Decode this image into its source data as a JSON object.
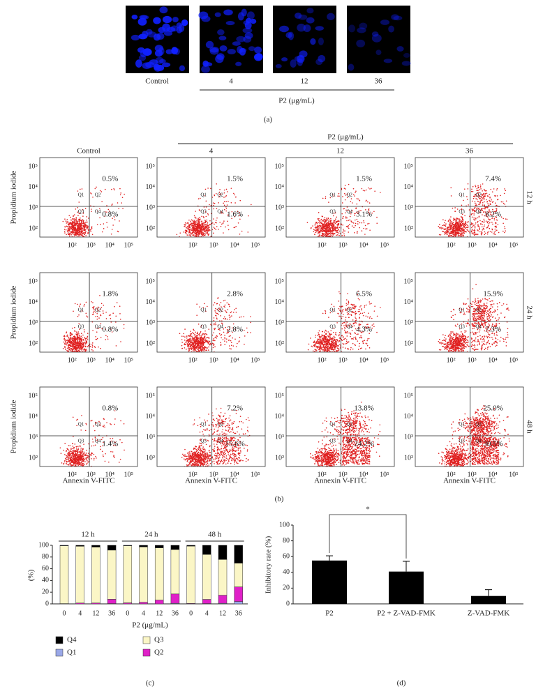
{
  "panel_a": {
    "columns": [
      "Control",
      "4",
      "12",
      "36"
    ],
    "axis_label": "P2 (μg/mL)",
    "panel_label": "(a)"
  },
  "panel_b": {
    "header": "P2 (μg/mL)",
    "columns": [
      "Control",
      "4",
      "12",
      "36"
    ],
    "ticks": [
      "10²",
      "10³",
      "10⁴",
      "10⁵"
    ],
    "quadrants": [
      "Q1",
      "Q2",
      "Q3",
      "Q4"
    ],
    "x_label": "Annexin V-FITC",
    "y_label": "Propidium iodide",
    "panel_label": "(b)",
    "rows": [
      {
        "time": "12 h",
        "plots": [
          {
            "upper": "0.5%",
            "lower": "0.8%"
          },
          {
            "upper": "1.5%",
            "lower": "1.6%"
          },
          {
            "upper": "1.5%",
            "lower": "3.1%"
          },
          {
            "upper": "7.4%",
            "lower": "8.2%"
          }
        ]
      },
      {
        "time": "24 h",
        "plots": [
          {
            "upper": "1.8%",
            "lower": "0.8%"
          },
          {
            "upper": "2.8%",
            "lower": "2.8%"
          },
          {
            "upper": "6.5%",
            "lower": "4.3%"
          },
          {
            "upper": "15.9%",
            "lower": "7.3%"
          }
        ]
      },
      {
        "time": "48 h",
        "plots": [
          {
            "upper": "0.8%",
            "lower": "1.4%"
          },
          {
            "upper": "7.2%",
            "lower": "15.6%"
          },
          {
            "upper": "13.8%",
            "lower": "24.2%"
          },
          {
            "upper": "25.0%",
            "lower": "30.5%"
          }
        ]
      }
    ]
  },
  "chart_data": [
    {
      "type": "stacked_bar",
      "categories": [
        "0",
        "4",
        "12",
        "36",
        "0",
        "4",
        "12",
        "36",
        "0",
        "4",
        "12",
        "36"
      ],
      "groups": [
        "12 h",
        "24 h",
        "48 h"
      ],
      "x_label": "P2 (μg/mL)",
      "y_label": "(%)",
      "panel_label": "(c)",
      "ylim": [
        0,
        100
      ],
      "yticks": [
        0,
        20,
        40,
        60,
        80,
        100
      ],
      "series": [
        {
          "name": "Q1",
          "color": "#9aa8e8",
          "values": [
            0,
            0,
            0,
            0.5,
            0,
            0,
            0,
            1,
            0,
            0.5,
            1,
            4
          ]
        },
        {
          "name": "Q2",
          "color": "#e020c8",
          "values": [
            0.5,
            1.5,
            1.5,
            7.4,
            1.8,
            2.8,
            6.5,
            15.9,
            0.8,
            7.2,
            13.8,
            25
          ]
        },
        {
          "name": "Q3",
          "color": "#fbf6c6",
          "values": [
            98.7,
            96.9,
            95.4,
            83.9,
            97.4,
            94.4,
            89.2,
            75.8,
            97.8,
            76.7,
            61,
            40.5
          ]
        },
        {
          "name": "Q4",
          "color": "#000000",
          "values": [
            0.8,
            1.6,
            3.1,
            8.2,
            0.8,
            2.8,
            4.3,
            7.3,
            1.4,
            15.6,
            24.2,
            30.5
          ]
        }
      ]
    },
    {
      "type": "bar",
      "categories": [
        "P2",
        "P2 + Z-VAD-FMK",
        "Z-VAD-FMK"
      ],
      "values": [
        55,
        41,
        10
      ],
      "errors": [
        6,
        13,
        8
      ],
      "color": "#000000",
      "y_label": "Inhibitory rate (%)",
      "annotation": "*",
      "panel_label": "(d)",
      "ylim": [
        0,
        100
      ],
      "yticks": [
        0,
        20,
        40,
        60,
        80,
        100
      ]
    }
  ]
}
